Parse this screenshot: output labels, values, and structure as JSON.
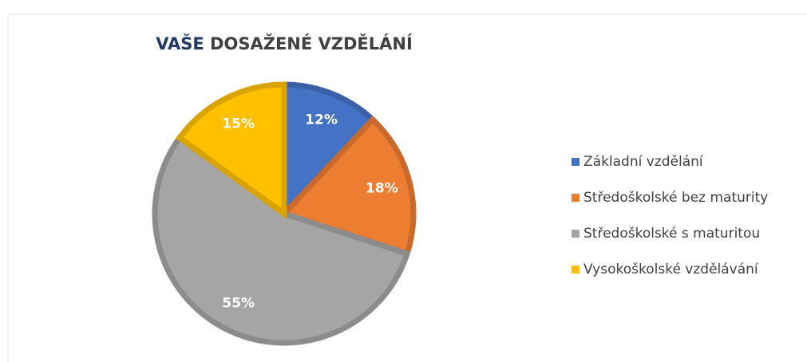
{
  "chart_data": {
    "type": "pie",
    "title": "VAŠE DOSAŽENÉ VZDĚLÁNÍ",
    "categories": [
      "Základní vzdělání",
      "Středoškolské bez maturity",
      "Středoškolské s maturitou",
      "Vysokoškolské vzdělávání"
    ],
    "values": [
      12,
      18,
      55,
      15
    ],
    "value_labels": [
      "12%",
      "18%",
      "55%",
      "15%"
    ],
    "colors": [
      "#4472c4",
      "#ed7d31",
      "#a5a5a5",
      "#ffc000"
    ],
    "legend": "right"
  }
}
